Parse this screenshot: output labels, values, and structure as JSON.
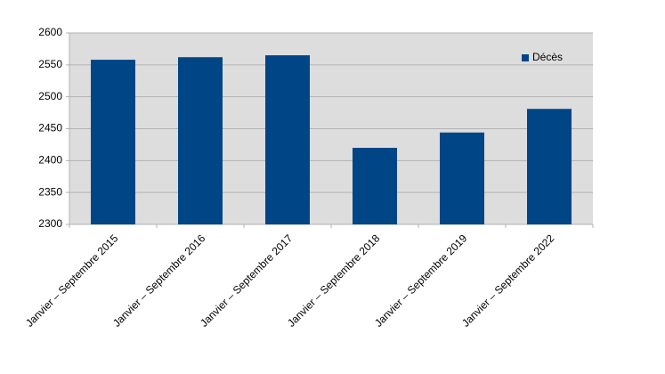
{
  "chart_data": {
    "type": "bar",
    "categories": [
      "Janvier – Septembre 2015",
      "Janvier – Septembre 2016",
      "Janvier – Septembre 2017",
      "Janvier – Septembre 2018",
      "Janvier – Septembre 2019",
      "Janvier – Septembre 2022"
    ],
    "series": [
      {
        "name": "Décès",
        "color": "#004586",
        "values": [
          2558,
          2562,
          2565,
          2420,
          2444,
          2481
        ]
      }
    ],
    "ylim": [
      2300,
      2600
    ],
    "yticks": [
      2300,
      2350,
      2400,
      2450,
      2500,
      2550,
      2600
    ],
    "grid": true,
    "legend": "upper right"
  }
}
